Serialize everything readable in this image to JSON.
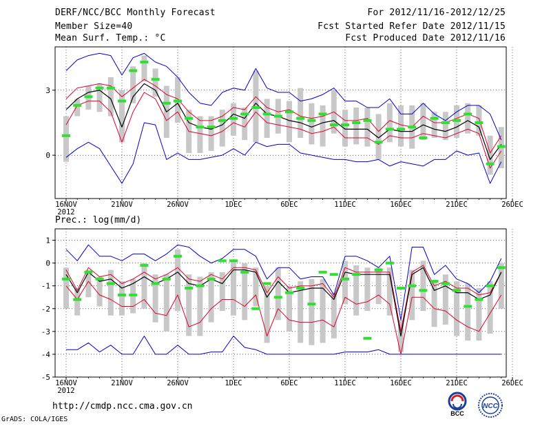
{
  "header": {
    "title": "DERF/NCC/BCC Monthly Forecast",
    "member_size": "Member Size=40",
    "variable1": "Mean Surf. Temp.: °C",
    "period": "For 2012/11/16-2012/12/25",
    "started": "Fcst Started Refer Date 2012/11/15",
    "produced": "Fcst Produced Date 2012/11/16"
  },
  "footer": {
    "url": "http://cmdp.ncc.cma.gov.cn",
    "grads": "GrADS: COLA/IGES",
    "logo1_text": "BCC",
    "logo2_text": "NCC"
  },
  "colors": {
    "outer": "#0000c8",
    "inner": "#e0002a",
    "mean": "#000000",
    "box": "#c8c8c8",
    "marker": "#30e030",
    "grid": "#000000"
  },
  "chart_data": [
    {
      "type": "line",
      "title": "Mean Surf. Temp.: °C",
      "ylim": [
        -2,
        5
      ],
      "yticks": [
        0,
        3
      ],
      "grid": "dotted",
      "x_ticks": [
        "16NOV",
        "21NOV",
        "26NOV",
        "1DEC",
        "6DEC",
        "11DEC",
        "16DEC",
        "21DEC",
        "26DEC"
      ],
      "x_sub": "2012",
      "n_days": 40,
      "series": [
        {
          "name": "max",
          "values": [
            3.9,
            4.4,
            4.6,
            4.7,
            4.6,
            3.7,
            4.5,
            4.7,
            4.3,
            4.1,
            3.6,
            2.9,
            2.4,
            2.3,
            2.9,
            3.1,
            3.0,
            4.0,
            3.1,
            2.9,
            2.9,
            2.5,
            2.6,
            2.8,
            3.1,
            2.5,
            2.5,
            2.2,
            2.2,
            2.6,
            1.9,
            1.9,
            2.4,
            1.9,
            1.6,
            2.0,
            2.3,
            2.3,
            1.9,
            0.7
          ]
        },
        {
          "name": "p90",
          "values": [
            2.6,
            3.1,
            3.2,
            3.3,
            3.2,
            2.7,
            3.1,
            3.5,
            3.2,
            2.8,
            2.6,
            2.0,
            1.6,
            1.6,
            1.8,
            2.2,
            2.1,
            2.7,
            2.2,
            2.0,
            2.1,
            1.8,
            1.7,
            1.8,
            2.0,
            1.6,
            1.6,
            1.7,
            1.1,
            1.6,
            1.4,
            1.3,
            1.8,
            1.5,
            1.5,
            1.7,
            1.9,
            1.7,
            0.1,
            0.9
          ]
        },
        {
          "name": "mean",
          "values": [
            2.1,
            2.6,
            2.9,
            3.0,
            2.6,
            1.3,
            2.7,
            3.3,
            3.0,
            2.0,
            2.4,
            1.5,
            1.3,
            1.2,
            1.4,
            1.9,
            1.7,
            2.4,
            1.9,
            1.8,
            1.6,
            1.5,
            1.3,
            1.5,
            1.6,
            1.2,
            1.2,
            1.2,
            0.8,
            1.2,
            1.1,
            1.1,
            1.4,
            1.2,
            1.1,
            1.3,
            1.6,
            1.3,
            -0.2,
            0.5
          ]
        },
        {
          "name": "p10",
          "values": [
            1.4,
            2.3,
            2.5,
            2.5,
            2.0,
            0.6,
            2.0,
            2.9,
            2.6,
            1.6,
            2.0,
            1.1,
            1.0,
            0.9,
            1.1,
            1.5,
            1.3,
            2.0,
            1.5,
            1.4,
            1.3,
            1.2,
            1.0,
            1.1,
            1.3,
            0.8,
            0.8,
            0.8,
            0.5,
            0.9,
            0.8,
            0.8,
            1.0,
            0.9,
            0.8,
            1.0,
            1.2,
            1.0,
            -0.6,
            0.2
          ]
        },
        {
          "name": "min",
          "values": [
            -0.1,
            0.3,
            0.6,
            0.3,
            -0.5,
            -1.3,
            -0.4,
            1.5,
            1.4,
            -0.2,
            0.1,
            -0.2,
            -0.2,
            -0.1,
            0.0,
            0.3,
            0.0,
            0.6,
            0.4,
            0.5,
            0.5,
            0.1,
            0.0,
            -0.1,
            -0.2,
            -0.2,
            -0.3,
            -0.3,
            -0.2,
            -0.5,
            -0.3,
            -0.4,
            -0.5,
            -0.2,
            -0.2,
            0.2,
            0.0,
            0.1,
            -1.3,
            -0.3
          ]
        },
        {
          "name": "box_top",
          "values": [
            1.8,
            2.6,
            3.2,
            3.3,
            3.6,
            3.0,
            4.1,
            4.6,
            4.0,
            3.2,
            3.6,
            2.1,
            1.8,
            1.8,
            2.1,
            2.4,
            2.2,
            3.9,
            2.6,
            2.6,
            2.5,
            3.1,
            2.4,
            2.3,
            3.0,
            2.1,
            2.2,
            2.2,
            1.9,
            2.4,
            2.3,
            2.3,
            2.4,
            2.0,
            2.0,
            2.3,
            2.4,
            2.3,
            0.9,
            1.3
          ]
        },
        {
          "name": "box_bottom",
          "values": [
            -0.3,
            1.8,
            2.1,
            2.0,
            1.8,
            0.6,
            2.4,
            3.4,
            2.7,
            0.8,
            1.5,
            0.1,
            0.1,
            0.2,
            0.4,
            0.9,
            0.7,
            0.6,
            0.8,
            1.0,
            0.6,
            0.8,
            0.5,
            0.4,
            1.0,
            0.4,
            0.5,
            0.4,
            -0.2,
            0.6,
            0.4,
            0.3,
            0.7,
            0.8,
            0.7,
            0.8,
            1.0,
            0.9,
            -0.9,
            -0.6
          ]
        },
        {
          "name": "observed",
          "values": [
            0.9,
            2.3,
            2.7,
            3.1,
            3.1,
            2.5,
            3.9,
            4.3,
            3.5,
            2.4,
            2.5,
            1.7,
            1.3,
            1.3,
            1.6,
            1.7,
            1.9,
            2.2,
            1.9,
            1.8,
            2.0,
            1.7,
            1.6,
            1.9,
            1.4,
            1.4,
            1.5,
            1.6,
            0.6,
            1.2,
            1.2,
            1.3,
            0.8,
            1.7,
            1.5,
            1.6,
            1.9,
            1.5,
            -0.4,
            0.4
          ]
        }
      ]
    },
    {
      "type": "line",
      "title": "Prec.: log(mm/d)",
      "ylim": [
        -5,
        1.5
      ],
      "yticks": [
        -5,
        -4,
        -3,
        -2,
        -1,
        0,
        1
      ],
      "grid": "dotted",
      "x_ticks": [
        "16NOV",
        "21NOV",
        "26NOV",
        "1DEC",
        "6DEC",
        "11DEC",
        "16DEC",
        "21DEC",
        "26DEC"
      ],
      "x_sub": "2012",
      "n_days": 40,
      "series": [
        {
          "name": "max",
          "values": [
            0.6,
            0.1,
            0.8,
            0.3,
            0.3,
            0.1,
            0.4,
            0.4,
            0.1,
            0.4,
            0.8,
            0.7,
            0.3,
            0.0,
            0.2,
            0.6,
            0.6,
            0.3,
            -0.7,
            -0.2,
            -0.2,
            -0.7,
            -0.6,
            -0.6,
            -1.4,
            0.3,
            0.3,
            0.1,
            -0.2,
            0.3,
            -2.5,
            0.7,
            0.7,
            -0.5,
            -0.1,
            -0.7,
            -0.9,
            -1.3,
            -0.8,
            0.2
          ]
        },
        {
          "name": "p90",
          "values": [
            -0.3,
            -1.2,
            -0.2,
            -0.6,
            -0.5,
            -0.9,
            -0.7,
            -0.4,
            -0.7,
            -0.5,
            -0.2,
            -0.7,
            -0.8,
            -0.5,
            -0.7,
            -0.2,
            -0.2,
            -0.3,
            -1.3,
            -0.6,
            -1.1,
            -1.0,
            -1.0,
            -0.9,
            -1.5,
            -0.2,
            -0.4,
            -0.4,
            -0.4,
            -0.4,
            -3.0,
            -0.4,
            -0.1,
            -1.0,
            -0.8,
            -1.1,
            -1.1,
            -1.4,
            -1.3,
            -0.4
          ]
        },
        {
          "name": "mean",
          "values": [
            -0.5,
            -1.3,
            -0.4,
            -0.8,
            -0.7,
            -1.1,
            -0.9,
            -0.6,
            -0.9,
            -0.7,
            -0.4,
            -0.9,
            -1.0,
            -0.7,
            -0.9,
            -0.3,
            -0.3,
            -0.4,
            -1.5,
            -0.8,
            -1.3,
            -1.2,
            -1.1,
            -1.1,
            -1.6,
            -0.4,
            -0.5,
            -0.5,
            -0.5,
            -0.5,
            -3.2,
            -0.5,
            -0.2,
            -1.2,
            -1.0,
            -1.3,
            -1.3,
            -1.6,
            -1.4,
            -0.4
          ]
        },
        {
          "name": "p10",
          "values": [
            -1.0,
            -1.6,
            -0.8,
            -1.4,
            -1.6,
            -1.9,
            -1.9,
            -1.6,
            -2.2,
            -2.3,
            -1.4,
            -2.8,
            -2.6,
            -2.0,
            -1.6,
            -1.6,
            -1.9,
            -1.4,
            -3.2,
            -2.0,
            -2.5,
            -2.6,
            -2.6,
            -2.5,
            -2.8,
            -1.5,
            -1.8,
            -1.7,
            -1.4,
            -1.8,
            -4.0,
            -1.5,
            -1.5,
            -2.0,
            -2.1,
            -2.5,
            -2.8,
            -3.0,
            -2.2,
            -1.4
          ]
        },
        {
          "name": "min",
          "values": [
            -3.8,
            -3.8,
            -3.5,
            -3.9,
            -3.6,
            -4.0,
            -4.0,
            -3.2,
            -4.0,
            -4.0,
            -3.6,
            -4.0,
            -4.0,
            -3.9,
            -3.9,
            -3.2,
            -3.7,
            -3.8,
            -4.0,
            -4.0,
            -4.0,
            -4.0,
            -4.0,
            -4.0,
            -4.0,
            -3.9,
            -3.9,
            -3.9,
            -3.8,
            -4.0,
            -4.0,
            -4.0,
            -4.0,
            -4.0,
            -4.0,
            -4.0,
            -4.0,
            -4.0,
            -4.0,
            -4.0
          ]
        },
        {
          "name": "box_top",
          "values": [
            -0.2,
            -1.1,
            -0.3,
            -0.6,
            -0.3,
            -0.8,
            -0.7,
            0.0,
            -0.5,
            -0.5,
            0.6,
            -0.5,
            -0.6,
            -0.4,
            -0.4,
            0.1,
            0.0,
            -0.2,
            -1.0,
            -0.2,
            -1.0,
            -0.8,
            -0.7,
            -0.7,
            -1.3,
            0.1,
            -0.1,
            -0.2,
            -0.2,
            -0.2,
            -2.5,
            -0.3,
            0.1,
            -0.8,
            -0.5,
            -0.8,
            -0.9,
            -1.1,
            -0.8,
            0.0
          ]
        },
        {
          "name": "box_bottom",
          "values": [
            -2.0,
            -2.3,
            -1.5,
            -1.9,
            -2.3,
            -2.3,
            -2.2,
            -2.0,
            -2.6,
            -3.0,
            -2.1,
            -3.2,
            -3.2,
            -2.6,
            -2.1,
            -2.3,
            -2.5,
            -1.9,
            -3.5,
            -2.5,
            -3.0,
            -3.5,
            -3.6,
            -3.5,
            -3.3,
            -1.8,
            -2.3,
            -2.1,
            -1.8,
            -2.3,
            -3.9,
            -2.5,
            -2.1,
            -2.8,
            -2.7,
            -3.2,
            -3.4,
            -3.4,
            -3.1,
            -2.0
          ]
        },
        {
          "name": "observed",
          "values": [
            -0.7,
            -1.6,
            -0.4,
            -0.7,
            -0.9,
            -1.4,
            -1.4,
            -0.1,
            -0.9,
            -0.7,
            0.3,
            -1.1,
            -1.0,
            -0.7,
            0.1,
            0.1,
            -0.4,
            -2.0,
            -0.9,
            -1.5,
            -1.3,
            -1.1,
            -1.8,
            -0.4,
            -0.5,
            -0.7,
            -0.5,
            -3.3,
            -0.3,
            0.0,
            -1.1,
            -1.0,
            -1.2,
            -0.8,
            -0.9,
            -1.2,
            -1.9,
            -1.6,
            -1.0,
            -0.2
          ]
        }
      ]
    }
  ]
}
